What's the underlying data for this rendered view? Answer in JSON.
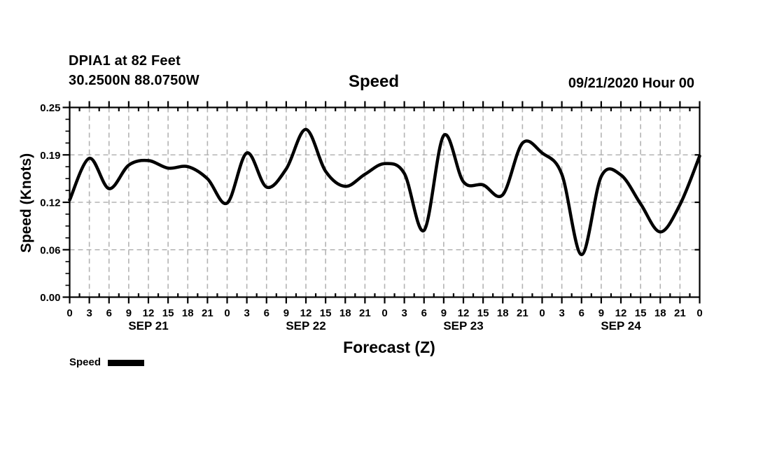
{
  "chart_data": {
    "type": "line",
    "station": "DPIA1 at 82 Feet",
    "location": "30.2500N 88.0750W",
    "title": "Speed",
    "datetime": "09/21/2020 Hour 00",
    "xlabel": "Forecast (Z)",
    "ylabel": "Speed (Knots)",
    "legend_label": "Speed",
    "grid": true,
    "legend_position": "bottom-left",
    "line_color": "#000000",
    "grid_color": "#b3b3b3",
    "xlim_hours": [
      0,
      96
    ],
    "ylim": [
      0,
      0.25
    ],
    "y_ticks": [
      0,
      0.0625,
      0.125,
      0.1875,
      0.25
    ],
    "y_tick_labels": [
      "0.00",
      "0.06",
      "0.12",
      "0.19",
      "0.25"
    ],
    "x_tick_labels": [
      "0",
      "3",
      "6",
      "9",
      "12",
      "15",
      "18",
      "21",
      "0",
      "3",
      "6",
      "9",
      "12",
      "15",
      "18",
      "21",
      "0",
      "3",
      "6",
      "9",
      "12",
      "15",
      "18",
      "21",
      "0",
      "3",
      "6",
      "9",
      "12",
      "15",
      "18",
      "21",
      "0"
    ],
    "day_labels": [
      "SEP 21",
      "SEP 22",
      "SEP 23",
      "SEP 24"
    ],
    "day_label_center_hours": [
      12,
      36,
      60,
      84
    ],
    "series": [
      {
        "name": "Speed",
        "hours": [
          0,
          3,
          6,
          9,
          12,
          15,
          18,
          21,
          24,
          27,
          30,
          33,
          36,
          39,
          42,
          45,
          48,
          51,
          54,
          57,
          60,
          63,
          66,
          69,
          72,
          75,
          78,
          81,
          84,
          87,
          90,
          93,
          96
        ],
        "values": [
          0.128,
          0.183,
          0.143,
          0.174,
          0.18,
          0.17,
          0.172,
          0.156,
          0.124,
          0.19,
          0.145,
          0.169,
          0.221,
          0.166,
          0.146,
          0.162,
          0.176,
          0.163,
          0.088,
          0.213,
          0.152,
          0.148,
          0.135,
          0.203,
          0.19,
          0.162,
          0.056,
          0.159,
          0.161,
          0.123,
          0.086,
          0.122,
          0.186
        ]
      }
    ]
  }
}
